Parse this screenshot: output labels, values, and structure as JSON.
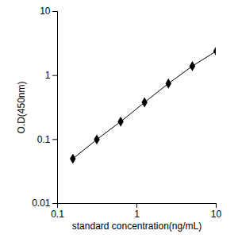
{
  "chart_data": {
    "type": "line",
    "x_label": "standard concentration(ng/mL)",
    "y_label": "O.D(450nm)",
    "x": [
      0.156,
      0.3125,
      0.625,
      1.25,
      2.5,
      5,
      10
    ],
    "series": [
      {
        "color": "#000000",
        "marker": "diamond",
        "values": [
          0.05,
          0.1,
          0.19,
          0.38,
          0.75,
          1.4,
          2.4
        ]
      }
    ],
    "log": true,
    "grid": false,
    "xlim": [
      0.1,
      10
    ],
    "xticks": [
      0.1,
      1,
      10
    ],
    "ylim": [
      0.01,
      10
    ],
    "yticks": [
      0.01,
      0.1,
      1,
      10
    ]
  }
}
